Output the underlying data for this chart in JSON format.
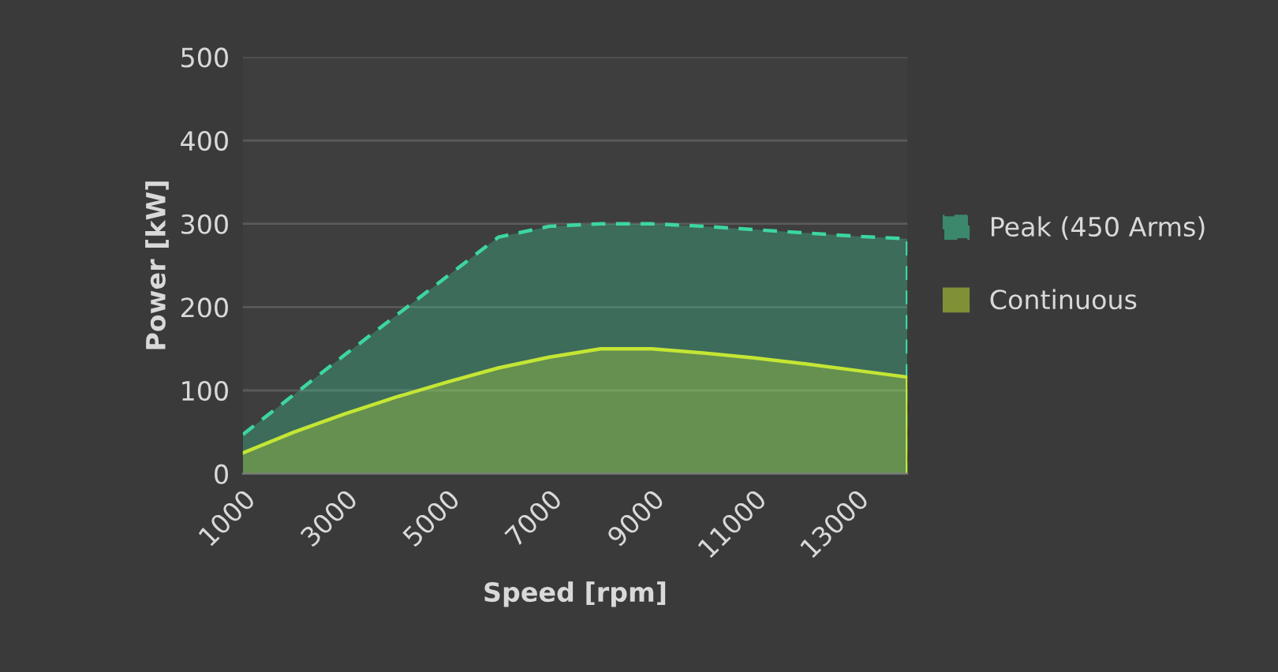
{
  "chart_data": {
    "type": "area",
    "xlabel": "Speed [rpm]",
    "ylabel": "Power [kW]",
    "x": [
      1000,
      2000,
      3000,
      4000,
      5000,
      6000,
      7000,
      8000,
      9000,
      10000,
      11000,
      12000,
      13000,
      14000
    ],
    "series": [
      {
        "name": "Peak (450 Arms)",
        "color": "#3dd6a0",
        "line_style": "dashed",
        "values": [
          47,
          95,
          143,
          190,
          237,
          284,
          297,
          300,
          300,
          297,
          293,
          289,
          285,
          282
        ]
      },
      {
        "name": "Continuous",
        "color": "#c4e634",
        "line_style": "solid",
        "values": [
          25,
          50,
          72,
          92,
          110,
          127,
          140,
          150,
          150,
          145,
          139,
          132,
          124,
          116
        ]
      }
    ],
    "xlim": [
      1000,
      14000
    ],
    "xticks": [
      1000,
      3000,
      5000,
      7000,
      9000,
      11000,
      13000
    ],
    "ylim": [
      0,
      500
    ],
    "yticks": [
      0,
      100,
      200,
      300,
      400,
      500
    ],
    "grid": "y",
    "legend": "right"
  }
}
